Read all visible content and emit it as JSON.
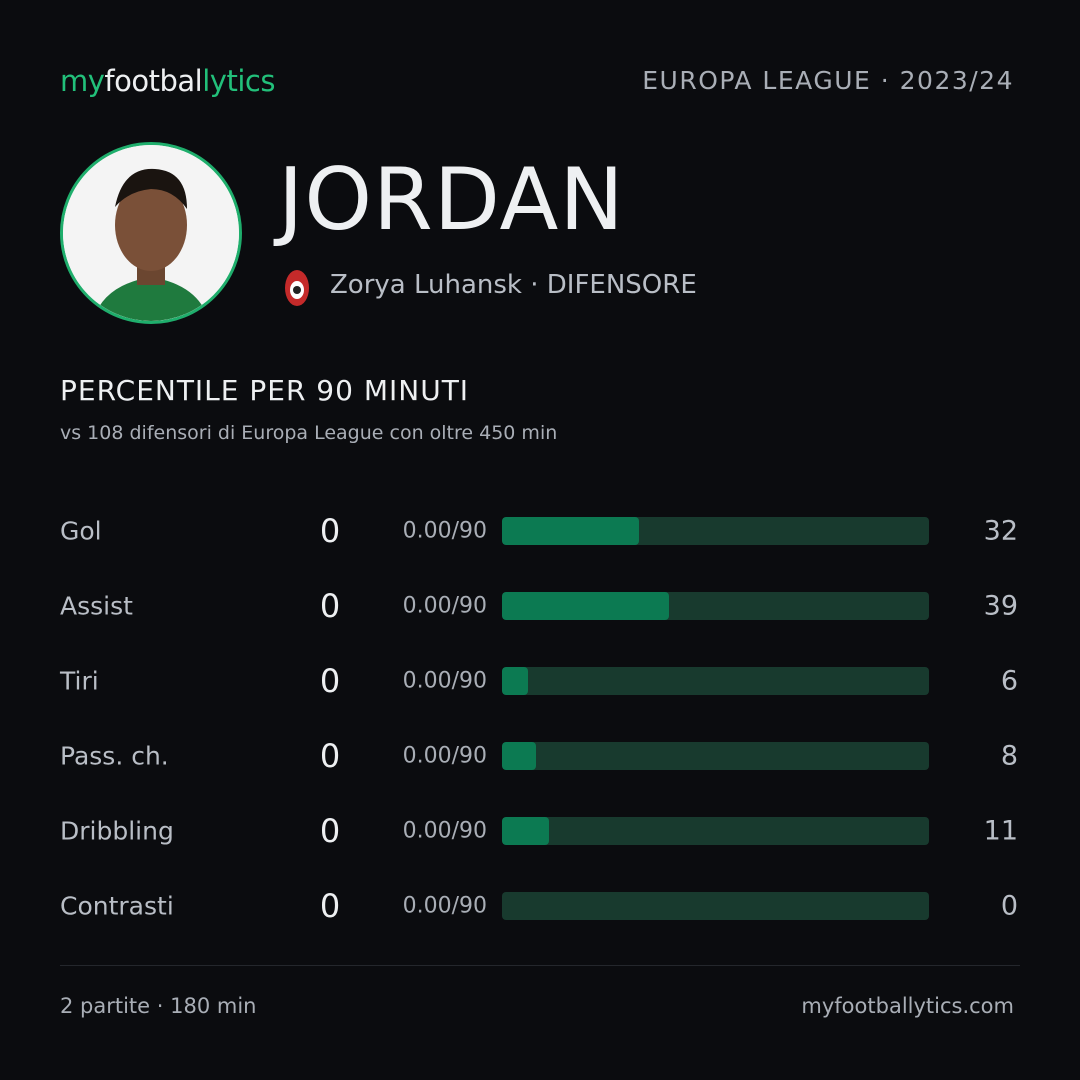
{
  "header": {
    "logo": [
      "my",
      "footbal",
      "lytics"
    ],
    "competition": "EUROPA LEAGUE · 2023/24"
  },
  "player": {
    "name": "JORDAN",
    "club_line": "Zorya Luhansk · DIFENSORE"
  },
  "section": {
    "title": "PERCENTILE  PER 90 MINUTI",
    "subtitle": "vs 108 difensori  di Europa League con oltre 450 min"
  },
  "percentile_range": [
    0,
    100
  ],
  "rows": [
    {
      "label": "Gol",
      "total": 0,
      "per90": "0.00/90",
      "percentile": 32
    },
    {
      "label": "Assist",
      "total": 0,
      "per90": "0.00/90",
      "percentile": 39
    },
    {
      "label": "Tiri",
      "total": 0,
      "per90": "0.00/90",
      "percentile": 6
    },
    {
      "label": "Pass. ch.",
      "total": 0,
      "per90": "0.00/90",
      "percentile": 8
    },
    {
      "label": "Dribbling",
      "total": 0,
      "per90": "0.00/90",
      "percentile": 11
    },
    {
      "label": "Contrasti",
      "total": 0,
      "per90": "0.00/90",
      "percentile": 0
    }
  ],
  "footer": {
    "summary": "2 partite · 180 min",
    "site": "myfootballytics.com"
  }
}
